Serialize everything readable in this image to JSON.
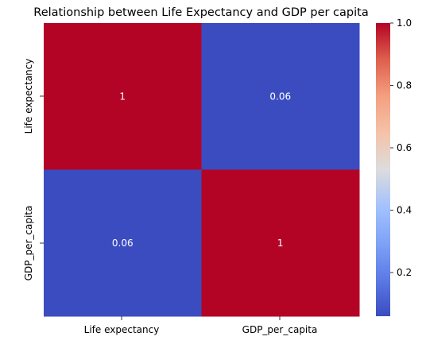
{
  "chart_data": {
    "type": "heatmap",
    "title": "Relationship between Life Expectancy and GDP per capita",
    "row_labels": [
      "Life expectancy",
      "GDP_per_capita"
    ],
    "col_labels": [
      "Life expectancy",
      "GDP_per_capita"
    ],
    "values": [
      [
        1,
        0.06
      ],
      [
        0.06,
        1
      ]
    ],
    "annotations": [
      [
        "1",
        "0.06"
      ],
      [
        "0.06",
        "1"
      ]
    ],
    "colormap": "coolwarm",
    "colorbar": {
      "min": 0.06,
      "max": 1.0,
      "ticks": [
        0.2,
        0.4,
        0.6,
        0.8,
        1.0
      ],
      "tick_labels": [
        "0.2",
        "0.4",
        "0.6",
        "0.8",
        "1.0"
      ]
    },
    "colors": {
      "high": "#b40426",
      "low": "#3b4cc0"
    }
  }
}
